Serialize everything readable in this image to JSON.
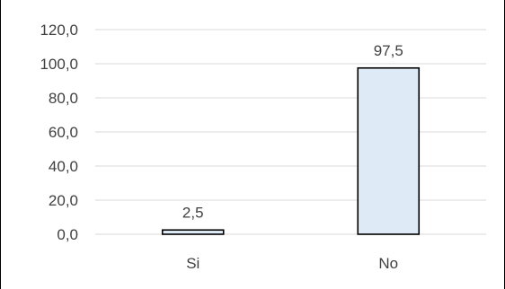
{
  "chart_data": {
    "type": "bar",
    "categories": [
      "Si",
      "No"
    ],
    "values": [
      2.5,
      97.5
    ],
    "value_labels": [
      "2,5",
      "97,5"
    ],
    "y_ticks": [
      "0,0",
      "20,0",
      "40,0",
      "60,0",
      "80,0",
      "100,0",
      "120,0"
    ],
    "ylim": [
      0,
      120
    ],
    "grid": true,
    "legend": "none",
    "bar_fill": "#deebf7",
    "bar_stroke": "#000000",
    "gridline_color": "#d9d9d9",
    "text_color": "#404040"
  }
}
